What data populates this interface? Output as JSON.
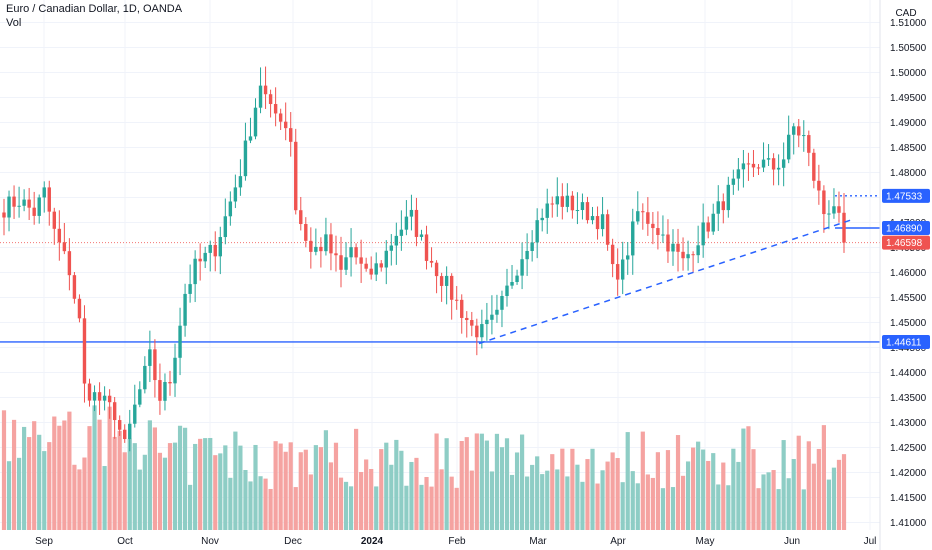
{
  "header": {
    "title": "Euro / Canadian Dollar, 1D, OANDA",
    "volume_label": "Vol"
  },
  "currency": "CAD",
  "colors": {
    "up": "#26a69a",
    "down": "#ef5350",
    "vol_up": "#8ecdc5",
    "vol_down": "#f5a3a1",
    "line": "#2962ff",
    "grid": "#f0f3fa"
  },
  "chart_data": {
    "type": "candlestick",
    "y_axis_ticks": [
      "1.51000",
      "1.50500",
      "1.50000",
      "1.49500",
      "1.49000",
      "1.48500",
      "1.48000",
      "1.47500",
      "1.47000",
      "1.46500",
      "1.46000",
      "1.45500",
      "1.45000",
      "1.44500",
      "1.44000",
      "1.43500",
      "1.43000",
      "1.42500",
      "1.42000",
      "1.41500",
      "1.41000"
    ],
    "ylim": [
      1.4085,
      1.5125
    ],
    "x_axis_labels": [
      {
        "label": "Sep",
        "bold": false
      },
      {
        "label": "Oct",
        "bold": false
      },
      {
        "label": "Nov",
        "bold": false
      },
      {
        "label": "Dec",
        "bold": false
      },
      {
        "label": "2024",
        "bold": true
      },
      {
        "label": "Feb",
        "bold": false
      },
      {
        "label": "Mar",
        "bold": false
      },
      {
        "label": "Apr",
        "bold": false
      },
      {
        "label": "May",
        "bold": false
      },
      {
        "label": "Jun",
        "bold": false
      },
      {
        "label": "Jul",
        "bold": false
      }
    ],
    "price_tags": [
      {
        "value": "1.47533",
        "price": 1.47533,
        "color": "#2962ff",
        "style": "dotted"
      },
      {
        "value": "1.46890",
        "price": 1.4689,
        "color": "#2962ff",
        "style": "solid"
      },
      {
        "value": "1.46598",
        "price": 1.46598,
        "color": "#ef5350",
        "style": "dotted-faint"
      },
      {
        "value": "1.44611",
        "price": 1.44611,
        "color": "#2962ff",
        "style": "horizontal"
      }
    ],
    "trendline": {
      "start_price": 1.4458,
      "end_price": 1.4707,
      "start_month": "Feb",
      "end_month": "Jun"
    },
    "anchors": [
      {
        "d": 0,
        "p": 1.473
      },
      {
        "d": 3,
        "p": 1.4745
      },
      {
        "d": 6,
        "p": 1.472
      },
      {
        "d": 8,
        "p": 1.476
      },
      {
        "d": 10,
        "p": 1.468
      },
      {
        "d": 13,
        "p": 1.4605
      },
      {
        "d": 15,
        "p": 1.45
      },
      {
        "d": 16,
        "p": 1.437
      },
      {
        "d": 19,
        "p": 1.4345
      },
      {
        "d": 22,
        "p": 1.432
      },
      {
        "d": 24,
        "p": 1.425
      },
      {
        "d": 26,
        "p": 1.433
      },
      {
        "d": 29,
        "p": 1.443
      },
      {
        "d": 31,
        "p": 1.435
      },
      {
        "d": 33,
        "p": 1.4385
      },
      {
        "d": 36,
        "p": 1.456
      },
      {
        "d": 38,
        "p": 1.461
      },
      {
        "d": 42,
        "p": 1.465
      },
      {
        "d": 44,
        "p": 1.471
      },
      {
        "d": 47,
        "p": 1.4805
      },
      {
        "d": 49,
        "p": 1.489
      },
      {
        "d": 51,
        "p": 1.498
      },
      {
        "d": 53,
        "p": 1.492
      },
      {
        "d": 55,
        "p": 1.4915
      },
      {
        "d": 57,
        "p": 1.487
      },
      {
        "d": 58,
        "p": 1.473
      },
      {
        "d": 61,
        "p": 1.464
      },
      {
        "d": 64,
        "p": 1.466
      },
      {
        "d": 67,
        "p": 1.46
      },
      {
        "d": 69,
        "p": 1.465
      },
      {
        "d": 72,
        "p": 1.459
      },
      {
        "d": 75,
        "p": 1.462
      },
      {
        "d": 78,
        "p": 1.468
      },
      {
        "d": 81,
        "p": 1.471
      },
      {
        "d": 84,
        "p": 1.464
      },
      {
        "d": 87,
        "p": 1.459
      },
      {
        "d": 90,
        "p": 1.454
      },
      {
        "d": 93,
        "p": 1.449
      },
      {
        "d": 95,
        "p": 1.448
      },
      {
        "d": 98,
        "p": 1.451
      },
      {
        "d": 101,
        "p": 1.459
      },
      {
        "d": 104,
        "p": 1.466
      },
      {
        "d": 107,
        "p": 1.472
      },
      {
        "d": 110,
        "p": 1.4745
      },
      {
        "d": 113,
        "p": 1.4735
      },
      {
        "d": 116,
        "p": 1.472
      },
      {
        "d": 119,
        "p": 1.47
      },
      {
        "d": 121,
        "p": 1.46
      },
      {
        "d": 123,
        "p": 1.461
      },
      {
        "d": 126,
        "p": 1.472
      },
      {
        "d": 129,
        "p": 1.47
      },
      {
        "d": 132,
        "p": 1.466
      },
      {
        "d": 135,
        "p": 1.462
      },
      {
        "d": 138,
        "p": 1.467
      },
      {
        "d": 141,
        "p": 1.471
      },
      {
        "d": 144,
        "p": 1.476
      },
      {
        "d": 147,
        "p": 1.48
      },
      {
        "d": 150,
        "p": 1.482
      },
      {
        "d": 153,
        "p": 1.481
      },
      {
        "d": 155,
        "p": 1.483
      },
      {
        "d": 157,
        "p": 1.489
      },
      {
        "d": 159,
        "p": 1.487
      },
      {
        "d": 161,
        "p": 1.479
      },
      {
        "d": 163,
        "p": 1.472
      },
      {
        "d": 165,
        "p": 1.474
      },
      {
        "d": 167,
        "p": 1.466
      }
    ]
  }
}
